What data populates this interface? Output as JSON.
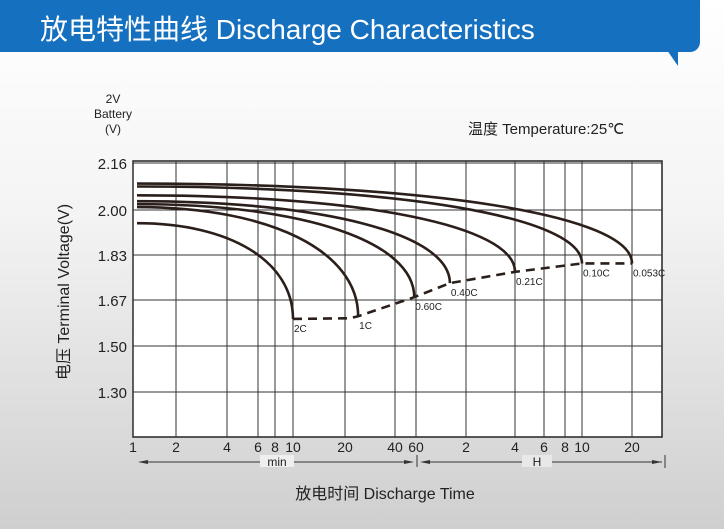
{
  "header": {
    "title": "放电特性曲线 Discharge Characteristics"
  },
  "chart_data": {
    "type": "line",
    "title": "",
    "unit_label": [
      "2V",
      "Battery",
      "(V)"
    ],
    "temperature": "温度 Temperature:25℃",
    "ylabel": "电压 Terminal Voltage(V)",
    "xlabel": "放电时间 Discharge Time",
    "x_scale": "log",
    "y_ticks": [
      "2.16",
      "2.00",
      "1.83",
      "1.67",
      "1.50",
      "1.30"
    ],
    "y_tick_values": [
      2.16,
      2.0,
      1.83,
      1.67,
      1.5,
      1.3
    ],
    "ylim": [
      1.13,
      2.16
    ],
    "x_ticks": [
      {
        "label": "1",
        "min": 1
      },
      {
        "label": "2",
        "min": 2
      },
      {
        "label": "4",
        "min": 4
      },
      {
        "label": "6",
        "min": 6
      },
      {
        "label": "8",
        "min": 8
      },
      {
        "label": "10",
        "min": 10
      },
      {
        "label": "20",
        "min": 20
      },
      {
        "label": "40",
        "min": 40
      },
      {
        "label": "60",
        "min": 60
      },
      {
        "label": "2",
        "min": 120
      },
      {
        "label": "4",
        "min": 240
      },
      {
        "label": "6",
        "min": 360
      },
      {
        "label": "8",
        "min": 480
      },
      {
        "label": "10",
        "min": 600
      },
      {
        "label": "20",
        "min": 1200
      }
    ],
    "x_units": {
      "min": "min",
      "hour": "H"
    },
    "grid": true,
    "series": [
      {
        "name": "2C",
        "start_v": 1.95,
        "end_min": 10,
        "end_v": 1.6
      },
      {
        "name": "1C",
        "start_v": 2.01,
        "end_min": 24,
        "end_v": 1.61
      },
      {
        "name": "0.60C",
        "start_v": 2.02,
        "end_min": 58,
        "end_v": 1.68
      },
      {
        "name": "0.40C",
        "start_v": 2.03,
        "end_min": 96,
        "end_v": 1.73
      },
      {
        "name": "0.21C",
        "start_v": 2.05,
        "end_min": 240,
        "end_v": 1.77
      },
      {
        "name": "0.10C",
        "start_v": 2.08,
        "end_min": 600,
        "end_v": 1.8
      },
      {
        "name": "0.053C",
        "start_v": 2.09,
        "end_min": 1200,
        "end_v": 1.8
      }
    ],
    "end_voltage_line": "dashed"
  }
}
